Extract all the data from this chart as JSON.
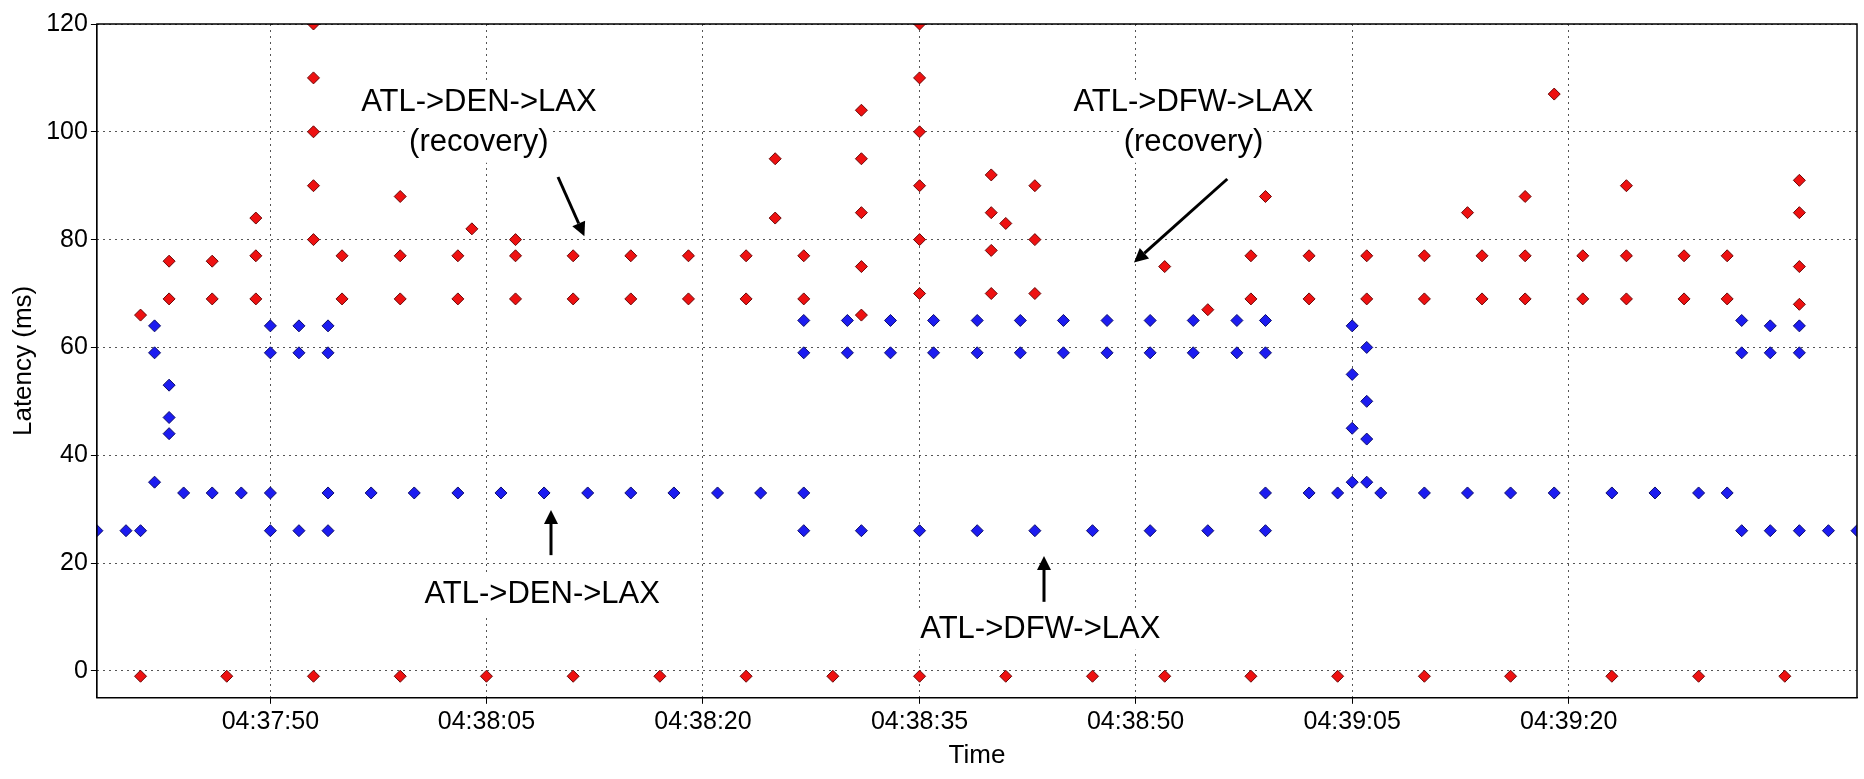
{
  "chart_data": {
    "type": "scatter",
    "xlabel": "Time",
    "ylabel": "Latency (ms)",
    "xlim": [
      4.62722,
      4.66111
    ],
    "xticks": [
      {
        "value": 4.63056,
        "label": "04:37:50"
      },
      {
        "value": 4.63472,
        "label": "04:38:05"
      },
      {
        "value": 4.63889,
        "label": "04:38:20"
      },
      {
        "value": 4.64306,
        "label": "04:38:35"
      },
      {
        "value": 4.64722,
        "label": "04:38:50"
      },
      {
        "value": 4.65139,
        "label": "04:39:05"
      },
      {
        "value": 4.65556,
        "label": "04:39:20"
      }
    ],
    "ylim": [
      -5,
      120
    ],
    "yticks": [
      0,
      20,
      40,
      60,
      80,
      100,
      120
    ],
    "grid": true,
    "marker": "diamond",
    "annotations": [
      "ATL->DEN->LAX\n(recovery)",
      "ATL->DFW->LAX\n(recovery)",
      "ATL->DEN->LAX",
      "ATL->DFW->LAX"
    ],
    "series": [
      {
        "color": "#1c1cf0",
        "x": [
          4.62722,
          4.62778,
          4.62806,
          4.62833,
          4.62833,
          4.62833,
          4.62861,
          4.62861,
          4.62861,
          4.62889,
          4.62944,
          4.63,
          4.63056,
          4.63056,
          4.63056,
          4.63111,
          4.63111,
          4.63167,
          4.63167,
          4.63056,
          4.63111,
          4.63167,
          4.63167,
          4.6325,
          4.63333,
          4.63417,
          4.635,
          4.63583,
          4.63667,
          4.6375,
          4.63833,
          4.63917,
          4.64,
          4.64083,
          4.64083,
          4.64083,
          4.64167,
          4.64167,
          4.6425,
          4.6425,
          4.64333,
          4.64333,
          4.64417,
          4.64417,
          4.645,
          4.645,
          4.64583,
          4.64583,
          4.64667,
          4.64667,
          4.6475,
          4.6475,
          4.64833,
          4.64833,
          4.64917,
          4.64917,
          4.64972,
          4.64972,
          4.64083,
          4.64194,
          4.64306,
          4.64417,
          4.64528,
          4.64639,
          4.6475,
          4.64861,
          4.64972,
          4.64972,
          4.65056,
          4.65111,
          4.65139,
          4.65139,
          4.65139,
          4.65167,
          4.65167,
          4.65167,
          4.65139,
          4.65167,
          4.65194,
          4.65278,
          4.65361,
          4.65444,
          4.65528,
          4.65639,
          4.65722,
          4.65806,
          4.65861,
          4.65889,
          4.65889,
          4.65944,
          4.65944,
          4.66,
          4.66,
          4.65889,
          4.65944,
          4.66,
          4.66056,
          4.66111
        ],
        "values": [
          26,
          26,
          26,
          64,
          59,
          35,
          53,
          47,
          44,
          33,
          33,
          33,
          33,
          64,
          59,
          64,
          59,
          64,
          59,
          26,
          26,
          26,
          33,
          33,
          33,
          33,
          33,
          33,
          33,
          33,
          33,
          33,
          33,
          33,
          65,
          59,
          65,
          59,
          65,
          59,
          65,
          59,
          65,
          59,
          65,
          59,
          65,
          59,
          65,
          59,
          65,
          59,
          65,
          59,
          65,
          59,
          65,
          59,
          26,
          26,
          26,
          26,
          26,
          26,
          26,
          26,
          26,
          33,
          33,
          33,
          64,
          55,
          45,
          60,
          50,
          43,
          35,
          35,
          33,
          33,
          33,
          33,
          33,
          33,
          33,
          33,
          33,
          65,
          59,
          64,
          59,
          64,
          59,
          26,
          26,
          26,
          26,
          26
        ]
      },
      {
        "color": "#ee1111",
        "x": [
          4.62806,
          4.62972,
          4.63139,
          4.63306,
          4.63472,
          4.63639,
          4.63806,
          4.63972,
          4.64139,
          4.64306,
          4.64472,
          4.64639,
          4.64778,
          4.64944,
          4.65111,
          4.65278,
          4.65444,
          4.65639,
          4.65806,
          4.65972,
          4.62806,
          4.62861,
          4.62861,
          4.62944,
          4.62944,
          4.63028,
          4.63028,
          4.63028,
          4.63139,
          4.63139,
          4.63139,
          4.63139,
          4.63139,
          4.63194,
          4.63194,
          4.63306,
          4.63306,
          4.63417,
          4.63417,
          4.63528,
          4.63528,
          4.63639,
          4.63639,
          4.6375,
          4.6375,
          4.63861,
          4.63861,
          4.63972,
          4.63972,
          4.64083,
          4.64083,
          4.63306,
          4.63444,
          4.63528,
          4.64028,
          4.64028,
          4.64194,
          4.64194,
          4.64194,
          4.64194,
          4.64194,
          4.64306,
          4.64306,
          4.64306,
          4.64306,
          4.64306,
          4.64306,
          4.64444,
          4.64444,
          4.64444,
          4.64444,
          4.64528,
          4.64528,
          4.64528,
          4.64472,
          4.64778,
          4.64861,
          4.64944,
          4.64944,
          4.65056,
          4.65056,
          4.65167,
          4.65167,
          4.65278,
          4.65278,
          4.65389,
          4.65389,
          4.65472,
          4.65472,
          4.65583,
          4.65583,
          4.65667,
          4.65667,
          4.65778,
          4.65778,
          4.65861,
          4.65861,
          4.64972,
          4.65361,
          4.65472,
          4.65528,
          4.65667,
          4.66,
          4.66,
          4.66,
          4.66
        ],
        "values": [
          -1,
          -1,
          -1,
          -1,
          -1,
          -1,
          -1,
          -1,
          -1,
          -1,
          -1,
          -1,
          -1,
          -1,
          -1,
          -1,
          -1,
          -1,
          -1,
          -1,
          66,
          76,
          69,
          76,
          69,
          77,
          69,
          84,
          120,
          110,
          100,
          90,
          80,
          77,
          69,
          77,
          69,
          77,
          69,
          77,
          69,
          77,
          69,
          77,
          69,
          77,
          69,
          77,
          69,
          77,
          69,
          88,
          82,
          80,
          95,
          84,
          104,
          95,
          85,
          75,
          66,
          120,
          110,
          100,
          90,
          80,
          70,
          92,
          85,
          78,
          70,
          90,
          80,
          70,
          83,
          75,
          67,
          77,
          69,
          77,
          69,
          77,
          69,
          77,
          69,
          77,
          69,
          77,
          69,
          77,
          69,
          77,
          69,
          77,
          69,
          77,
          69,
          88,
          85,
          88,
          107,
          90,
          91,
          85,
          75,
          68
        ]
      }
    ]
  }
}
